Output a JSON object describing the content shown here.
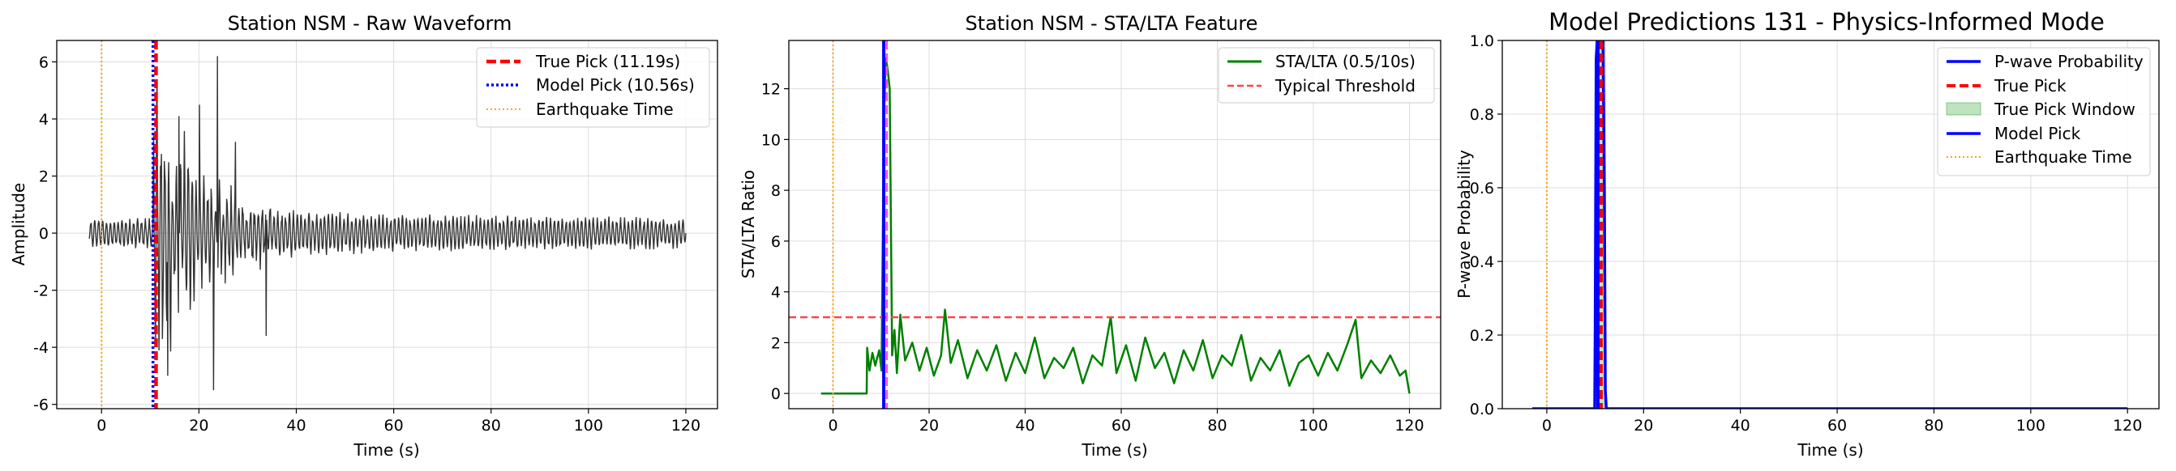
{
  "chart_data": [
    {
      "type": "line",
      "title": "Station NSM - Raw Waveform",
      "xlabel": "Time (s)",
      "ylabel": "Amplitude",
      "xlim": [
        -9.2,
        126.5
      ],
      "ylim": [
        -6.15,
        6.75
      ],
      "xticks": [
        0,
        20,
        40,
        60,
        80,
        100,
        120
      ],
      "yticks": [
        -6,
        -4,
        -2,
        0,
        2,
        4,
        6
      ],
      "grid": true,
      "legend_position": "top-right",
      "series": [
        {
          "name": "True Pick (11.19s)",
          "kind": "vline",
          "x": 11.19,
          "color": "#ff0000",
          "style": "dashed"
        },
        {
          "name": "Model Pick (10.56s)",
          "kind": "vline",
          "x": 10.56,
          "color": "#0000ff",
          "style": "dotted"
        },
        {
          "name": "Earthquake Time",
          "kind": "vline",
          "x": 0,
          "color": "#ffa500",
          "style": "dotted"
        }
      ],
      "waveform": {
        "name": "Raw waveform",
        "color": "#333333",
        "x_start": -2.5,
        "x_end": 120,
        "pre_amplitude": 0.55,
        "peak_amplitude": 4.8,
        "tail_amplitude": 0.55,
        "spikes": [
          [
            13.6,
            -5.0
          ],
          [
            15.9,
            4.1
          ],
          [
            20.1,
            4.5
          ],
          [
            23.0,
            -5.5
          ],
          [
            23.8,
            6.2
          ],
          [
            27.5,
            3.2
          ],
          [
            33.8,
            -3.6
          ]
        ]
      },
      "legend": [
        "True Pick (11.19s)",
        "Model Pick (10.56s)",
        "Earthquake Time"
      ]
    },
    {
      "type": "line",
      "title": "Station NSM - STA/LTA Feature",
      "xlabel": "Time (s)",
      "ylabel": "STA/LTA Ratio",
      "xlim": [
        -9.2,
        126.5
      ],
      "ylim": [
        -0.6,
        13.9
      ],
      "xticks": [
        0,
        20,
        40,
        60,
        80,
        100,
        120
      ],
      "yticks": [
        0,
        2,
        4,
        6,
        8,
        10,
        12
      ],
      "grid": true,
      "legend_position": "top-right",
      "series": [
        {
          "name": "STA/LTA (0.5/10s)",
          "kind": "line",
          "color": "#008000",
          "x": [
            -2.5,
            7.0,
            7.1,
            7.6,
            8.2,
            8.8,
            9.6,
            10.1,
            10.6,
            11.0,
            11.4,
            11.8,
            12.3,
            12.8,
            13.3,
            14.0,
            15.0,
            16.5,
            18.0,
            19.5,
            21.0,
            22.5,
            23.3,
            24.5,
            26.0,
            28.0,
            30.0,
            32.0,
            34.0,
            36.0,
            38.0,
            40.0,
            42.0,
            44.0,
            46.0,
            48.0,
            50.0,
            52.0,
            54.0,
            56.0,
            57.8,
            59.0,
            61.0,
            63.0,
            65.0,
            67.0,
            69.0,
            71.0,
            73.0,
            75.0,
            77.0,
            79.0,
            81.0,
            83.0,
            85.0,
            87.0,
            89.0,
            91.0,
            93.0,
            95.0,
            97.0,
            99.0,
            101.0,
            103.0,
            105.0,
            107.0,
            108.8,
            110.0,
            112.0,
            114.0,
            116.0,
            118.0,
            119.2,
            120.0
          ],
          "y": [
            0,
            0,
            1.8,
            0.9,
            1.6,
            1.1,
            1.7,
            0.9,
            11.0,
            13.2,
            12.7,
            12.0,
            1.5,
            2.5,
            0.8,
            3.1,
            1.3,
            2.0,
            0.9,
            1.8,
            0.7,
            1.5,
            3.3,
            1.2,
            2.1,
            0.6,
            1.7,
            0.9,
            1.9,
            0.5,
            1.6,
            0.8,
            2.2,
            0.6,
            1.4,
            1.0,
            1.8,
            0.4,
            1.5,
            1.1,
            3.0,
            0.8,
            1.9,
            0.5,
            2.2,
            1.0,
            1.6,
            0.4,
            1.7,
            0.9,
            2.1,
            0.6,
            1.5,
            1.1,
            2.3,
            0.5,
            1.4,
            0.9,
            1.7,
            0.3,
            1.2,
            1.5,
            0.7,
            1.6,
            0.9,
            1.9,
            2.9,
            0.6,
            1.3,
            0.8,
            1.5,
            0.7,
            0.9,
            0
          ]
        },
        {
          "name": "Typical Threshold",
          "kind": "hline",
          "y": 3.0,
          "color": "#ff4444",
          "style": "dashed"
        },
        {
          "name": "Model Pick",
          "kind": "vline",
          "x": 10.56,
          "color": "#0000ff",
          "style": "solid"
        },
        {
          "name": "True Pick",
          "kind": "vline",
          "x": 11.19,
          "color": "#ff44ff",
          "style": "dashed"
        },
        {
          "name": "Earthquake Time",
          "kind": "vline",
          "x": 0,
          "color": "#ffa500",
          "style": "dotted"
        }
      ],
      "legend": [
        "STA/LTA (0.5/10s)",
        "Typical Threshold"
      ]
    },
    {
      "type": "line",
      "title": "Model Predictions 131 - Physics-Informed Mode",
      "xlabel": "Time (s)",
      "ylabel": "P-wave Probability",
      "xlim": [
        -9.2,
        126.5
      ],
      "ylim": [
        0,
        1
      ],
      "xticks": [
        0,
        20,
        40,
        60,
        80,
        100,
        120
      ],
      "yticks": [
        0.0,
        0.2,
        0.4,
        0.6,
        0.8,
        1.0
      ],
      "grid": true,
      "legend_position": "top-right",
      "series": [
        {
          "name": "P-wave Probability",
          "kind": "line",
          "color": "#0000ff",
          "x": [
            -3.0,
            9.9,
            10.0,
            10.2,
            10.4,
            10.56,
            10.8,
            11.0,
            11.3,
            11.6,
            11.9,
            12.1,
            12.3,
            120.0
          ],
          "y": [
            0,
            0,
            0.22,
            0.95,
            1.0,
            1.0,
            1.0,
            1.0,
            1.0,
            1.0,
            0.6,
            0.05,
            0,
            0
          ]
        },
        {
          "name": "True Pick",
          "kind": "vline",
          "x": 11.19,
          "color": "#ff0000",
          "style": "dashed"
        },
        {
          "name": "True Pick Window",
          "kind": "span",
          "x": [
            10.19,
            12.19
          ],
          "color": "#2ca02c",
          "alpha": 0.3
        },
        {
          "name": "Model Pick",
          "kind": "vline",
          "x": 10.56,
          "color": "#0000ff",
          "style": "solid"
        },
        {
          "name": "Earthquake Time",
          "kind": "vline",
          "x": 0,
          "color": "#ffa500",
          "style": "dotted"
        }
      ],
      "legend": [
        "P-wave Probability",
        "True Pick",
        "True Pick Window",
        "Model Pick",
        "Earthquake Time"
      ]
    }
  ]
}
